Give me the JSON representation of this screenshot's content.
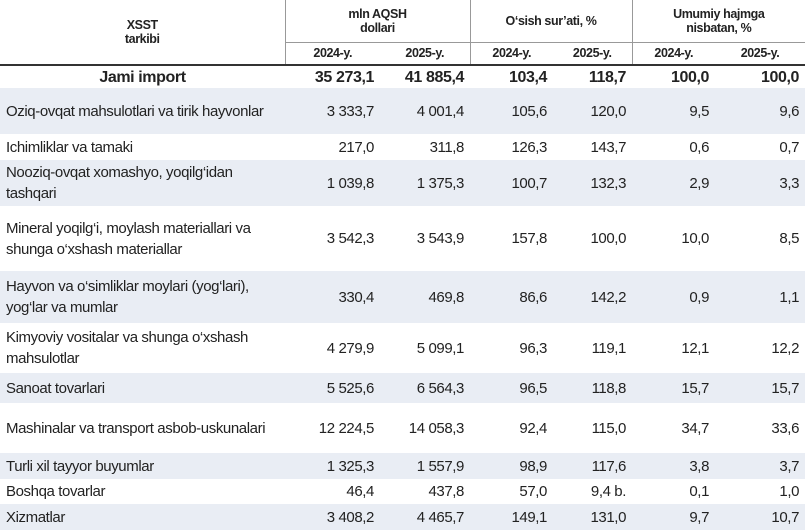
{
  "table": {
    "header": {
      "col0": "XSST\ntarkibi",
      "group1": "mln AQSH\ndollari",
      "group2": "O‘sish sur’ati, %",
      "group3": "Umumiy hajmga\nnisbatan, %",
      "years": [
        "2024-y.",
        "2025-y.",
        "2024-y.",
        "2025-y.",
        "2024-y.",
        "2025-y."
      ]
    },
    "total": [
      "Jami import",
      "35 273,1",
      "41 885,4",
      "103,4",
      "118,7",
      "100,0",
      "100,0"
    ],
    "rows": [
      [
        "Oziq-ovqat mahsulotlari va tirik hayvonlar",
        "3 333,7",
        "4 001,4",
        "105,6",
        "120,0",
        "9,5",
        "9,6"
      ],
      [
        "Ichimliklar va tamaki",
        "217,0",
        "311,8",
        "126,3",
        "143,7",
        "0,6",
        "0,7"
      ],
      [
        "Nooziq-ovqat xomashyo, yoqilg‘idan tashqari",
        "1 039,8",
        "1 375,3",
        "100,7",
        "132,3",
        "2,9",
        "3,3"
      ],
      [
        "Mineral yoqilg‘i, moylash materiallari va shunga o‘xshash materiallar",
        "3 542,3",
        "3 543,9",
        "157,8",
        "100,0",
        "10,0",
        "8,5"
      ],
      [
        "Hayvon va o‘simliklar moylari (yog‘lari), yog‘lar va mumlar",
        "330,4",
        "469,8",
        "86,6",
        "142,2",
        "0,9",
        "1,1"
      ],
      [
        "Kimyoviy vositalar va shunga o‘xshash mahsulotlar",
        "4 279,9",
        "5 099,1",
        "96,3",
        "119,1",
        "12,1",
        "12,2"
      ],
      [
        "Sanoat tovarlari",
        "5 525,6",
        "6 564,3",
        "96,5",
        "118,8",
        "15,7",
        "15,7"
      ],
      [
        "Mashinalar va transport asbob-uskunalari",
        "12 224,5",
        "14 058,3",
        "92,4",
        "115,0",
        "34,7",
        "33,6"
      ],
      [
        "Turli xil tayyor buyumlar",
        "1 325,3",
        "1 557,9",
        "98,9",
        "117,6",
        "3,8",
        "3,7"
      ],
      [
        "Boshqa tovarlar",
        "46,4",
        "437,8",
        "57,0",
        "9,4 b.",
        "0,1",
        "1,0"
      ],
      [
        "Xizmatlar",
        "3 408,2",
        "4 465,7",
        "149,1",
        "131,0",
        "9,7",
        "10,7"
      ]
    ]
  }
}
